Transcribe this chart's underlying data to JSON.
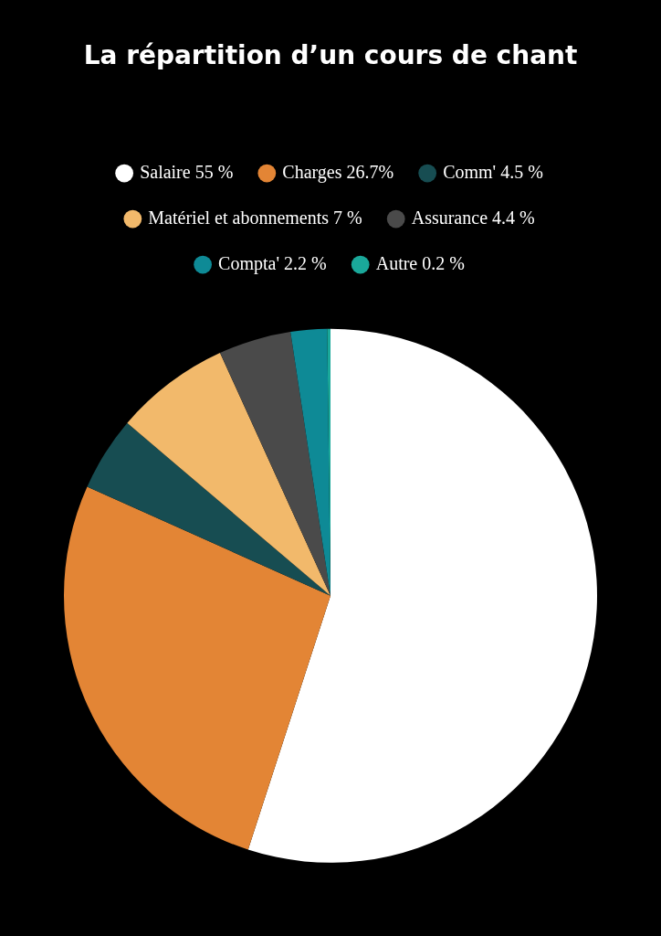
{
  "chart_data": {
    "type": "pie",
    "title": "La répartition d’un cours de chant",
    "categories": [
      "Salaire",
      "Charges",
      "Comm'",
      "Matériel et abonnements",
      "Assurance",
      "Compta'",
      "Autre"
    ],
    "values": [
      55,
      26.7,
      4.5,
      7,
      4.4,
      2.2,
      0.2
    ],
    "value_labels": [
      "55 %",
      "26.7%",
      "4.5 %",
      "7 %",
      "4.4 %",
      "2.2 %",
      "0.2 %"
    ],
    "colors": [
      "#ffffff",
      "#e38535",
      "#174d52",
      "#f2b96b",
      "#4a4a4a",
      "#0e8a96",
      "#1aa89a"
    ],
    "legend": "top"
  }
}
